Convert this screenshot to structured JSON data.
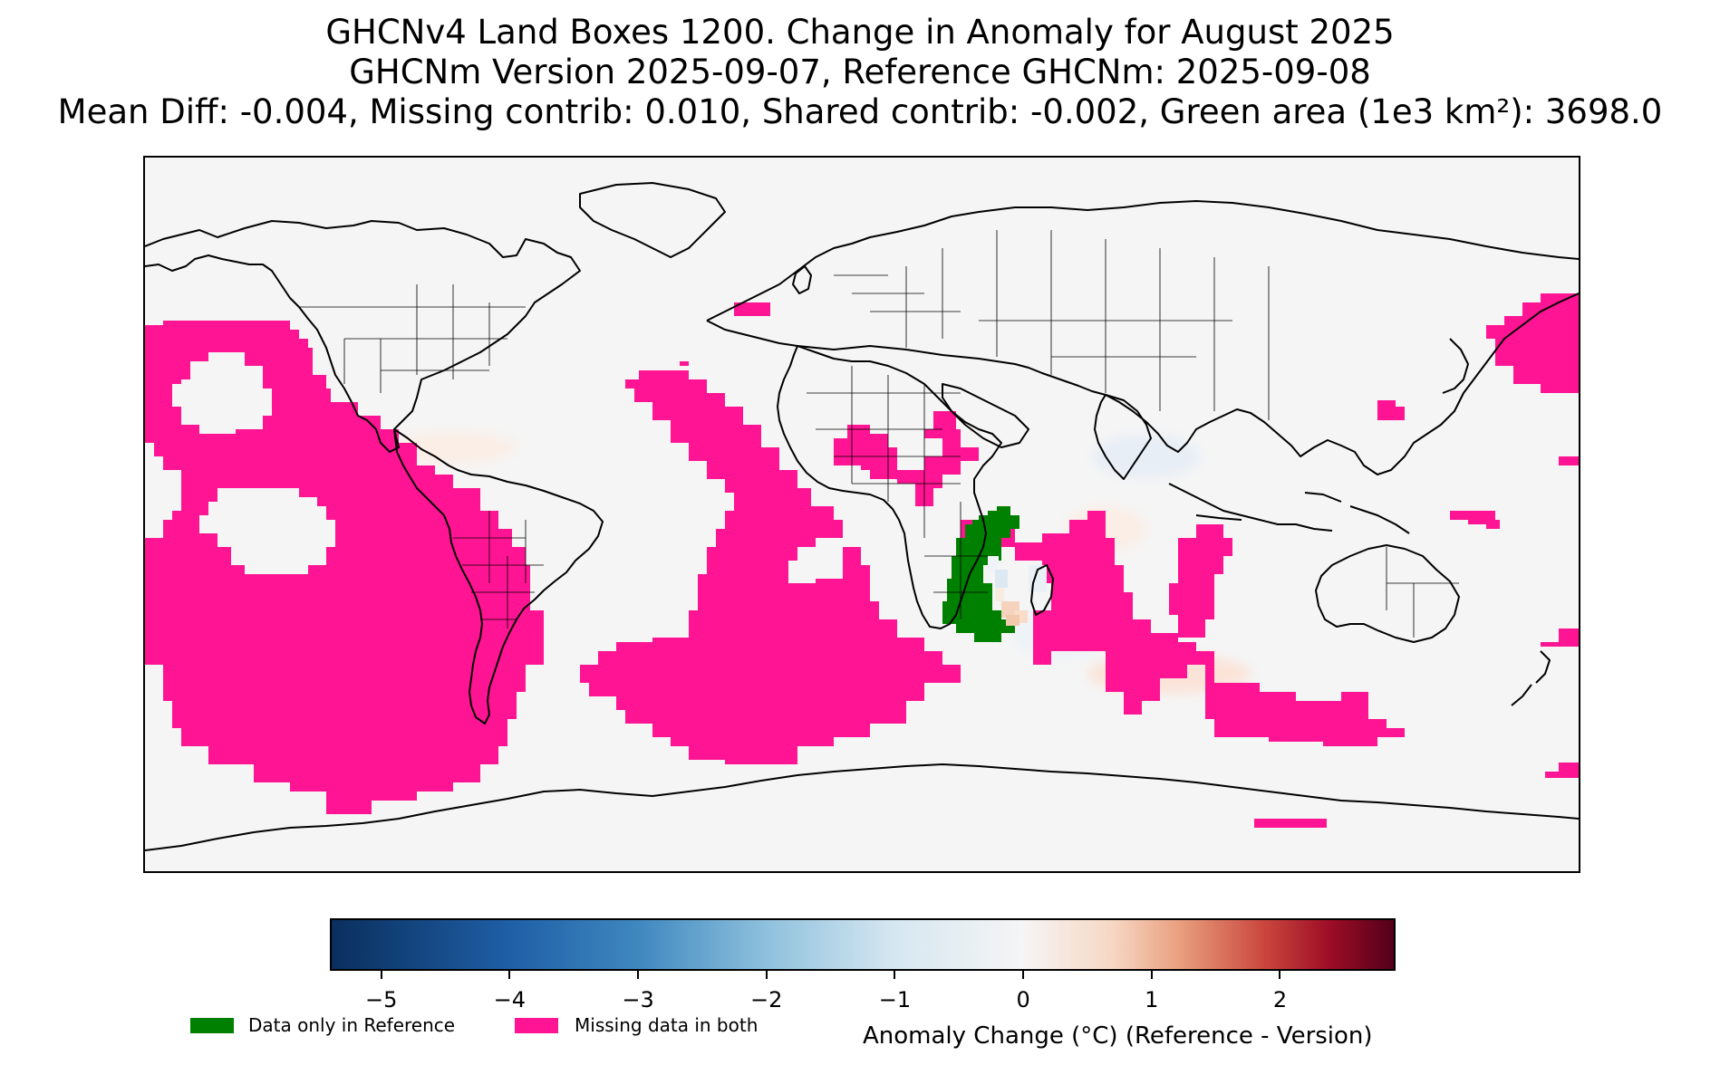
{
  "title": {
    "line1": "GHCNv4 Land Boxes 1200. Change in Anomaly for August 2025",
    "line2": "GHCNm Version 2025-09-07, Reference GHCNm: 2025-09-08",
    "line3": "Mean Diff: -0.004, Missing contrib: 0.010, Shared contrib: -0.002, Green area (1e3 km²): 3698.0"
  },
  "colors": {
    "missing_both": "#ff1493",
    "reference_only": "#008000",
    "no_change": "#f5f5f5",
    "coastline": "#000000"
  },
  "colorbar": {
    "colormap": "RdBu_r",
    "range": [
      -5.4,
      2.9
    ],
    "ticks": [
      {
        "value": -5,
        "label": "−5"
      },
      {
        "value": -4,
        "label": "−4"
      },
      {
        "value": -3,
        "label": "−3"
      },
      {
        "value": -2,
        "label": "−2"
      },
      {
        "value": -1,
        "label": "−1"
      },
      {
        "value": 0,
        "label": "0"
      },
      {
        "value": 1,
        "label": "1"
      },
      {
        "value": 2,
        "label": "2"
      }
    ],
    "label": "Anomaly Change (°C) (Reference - Version)"
  },
  "legend": {
    "items": [
      {
        "label": "Data only in Reference",
        "color": "#008000"
      },
      {
        "label": "Missing data in both",
        "color": "#ff1493"
      }
    ]
  },
  "map": {
    "projection": "equirectangular",
    "lon_range": [
      -180,
      180
    ],
    "lat_range": [
      -90,
      90
    ]
  }
}
